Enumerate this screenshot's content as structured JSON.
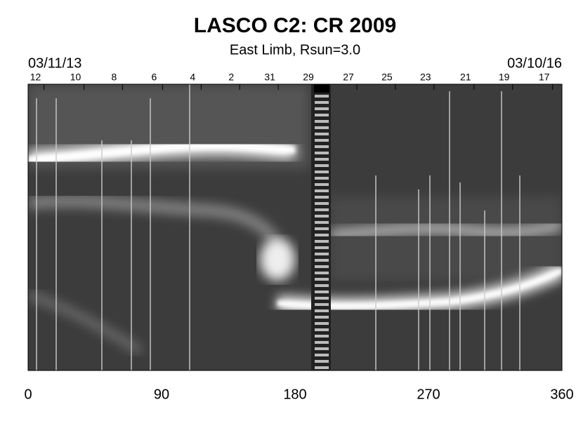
{
  "chart_data": {
    "type": "image",
    "title": "LASCO C2: CR 2009",
    "subtitle": "East Limb, Rsun=3.0",
    "start_date": "03/11/13",
    "end_date": "03/10/16",
    "xlim": [
      0,
      360
    ],
    "xticks": [
      0,
      90,
      180,
      270,
      360
    ],
    "top_ticks": [
      {
        "value": 5,
        "label": "12"
      },
      {
        "value": 32,
        "label": "10"
      },
      {
        "value": 58,
        "label": "8"
      },
      {
        "value": 85,
        "label": "6"
      },
      {
        "value": 111,
        "label": "4"
      },
      {
        "value": 137,
        "label": "2"
      },
      {
        "value": 163,
        "label": "31"
      },
      {
        "value": 189,
        "label": "29"
      },
      {
        "value": 216,
        "label": "27"
      },
      {
        "value": 242,
        "label": "25"
      },
      {
        "value": 268,
        "label": "23"
      },
      {
        "value": 295,
        "label": "21"
      },
      {
        "value": 321,
        "label": "19"
      },
      {
        "value": 348,
        "label": "17"
      }
    ]
  }
}
